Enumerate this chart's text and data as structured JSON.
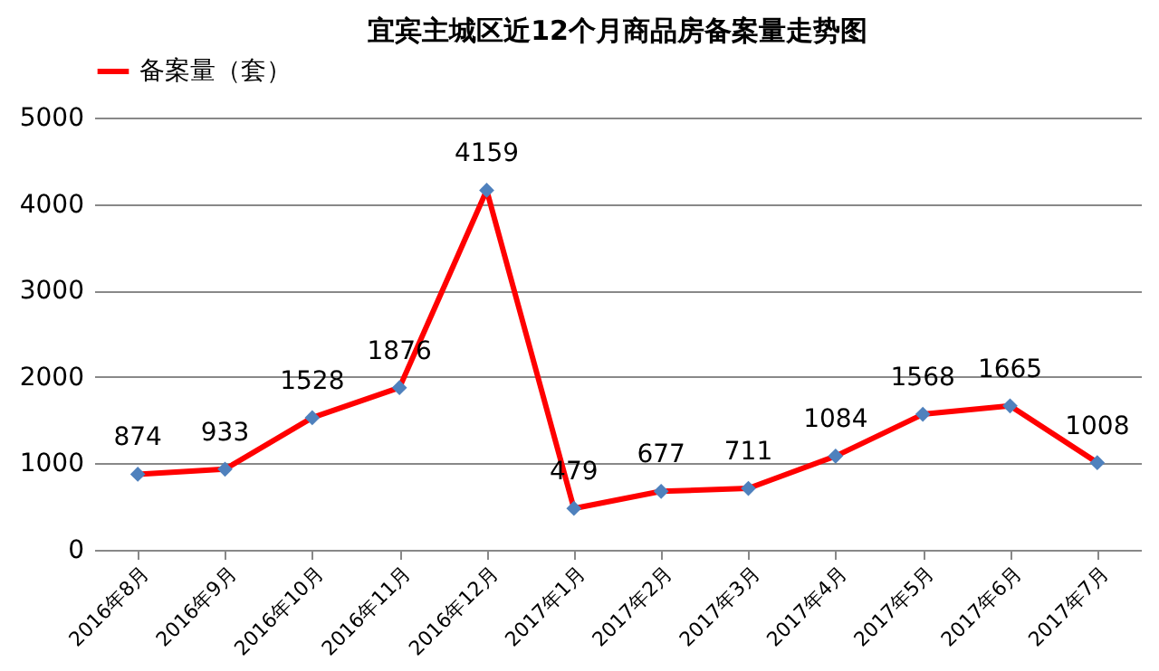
{
  "chart_data": {
    "type": "line",
    "title": "宜宾主城区近12个月商品房备案量走势图",
    "categories": [
      "2016年8月",
      "2016年9月",
      "2016年10月",
      "2016年11月",
      "2016年12月",
      "2017年1月",
      "2017年2月",
      "2017年3月",
      "2017年4月",
      "2017年5月",
      "2017年6月",
      "2017年7月"
    ],
    "series": [
      {
        "name": "备案量（套）",
        "color": "#ff0000",
        "values": [
          874,
          933,
          1528,
          1876,
          4159,
          479,
          677,
          711,
          1084,
          1568,
          1665,
          1008
        ]
      }
    ],
    "ylim": [
      0,
      5000
    ],
    "yticks": [
      0,
      1000,
      2000,
      3000,
      4000,
      5000
    ],
    "grid": "y",
    "legend": "top",
    "marker": "diamond",
    "line_style": "solid",
    "data_labels": true
  }
}
